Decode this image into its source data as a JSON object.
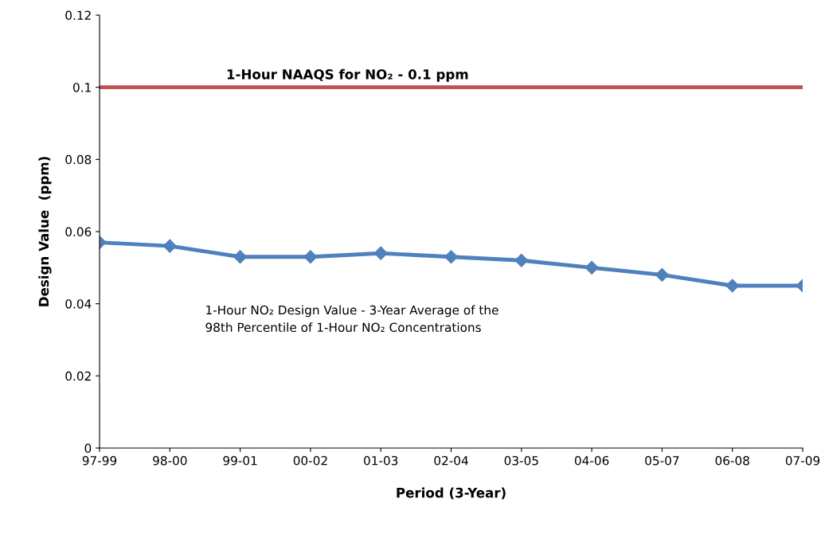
{
  "chart_data": {
    "type": "line",
    "xlabel": "Period (3-Year)",
    "ylabel": "Design Value  (ppm)",
    "categories": [
      "97-99",
      "98-00",
      "99-01",
      "00-02",
      "01-03",
      "02-04",
      "03-05",
      "04-06",
      "05-07",
      "06-08",
      "07-09"
    ],
    "series": [
      {
        "color": "#4f81bd",
        "values": [
          0.057,
          0.056,
          0.053,
          0.053,
          0.054,
          0.053,
          0.052,
          0.05,
          0.048,
          0.045,
          0.045
        ]
      }
    ],
    "marker": "diamond",
    "ylim": [
      0,
      0.12
    ],
    "yticks": [
      0,
      0.02,
      0.04,
      0.06,
      0.08,
      0.1,
      0.12
    ],
    "grid": false,
    "legend": false,
    "ref_lines": [
      {
        "axis": "y",
        "value": 0.1,
        "label": "1-Hour NAAQS for NO₂ - 0.1 ppm",
        "color": "#c0504d"
      }
    ],
    "annotations": [
      "1-Hour NO₂ Design Value - 3-Year Average of the\n98th Percentile of 1-Hour NO₂ Concentrations"
    ]
  }
}
